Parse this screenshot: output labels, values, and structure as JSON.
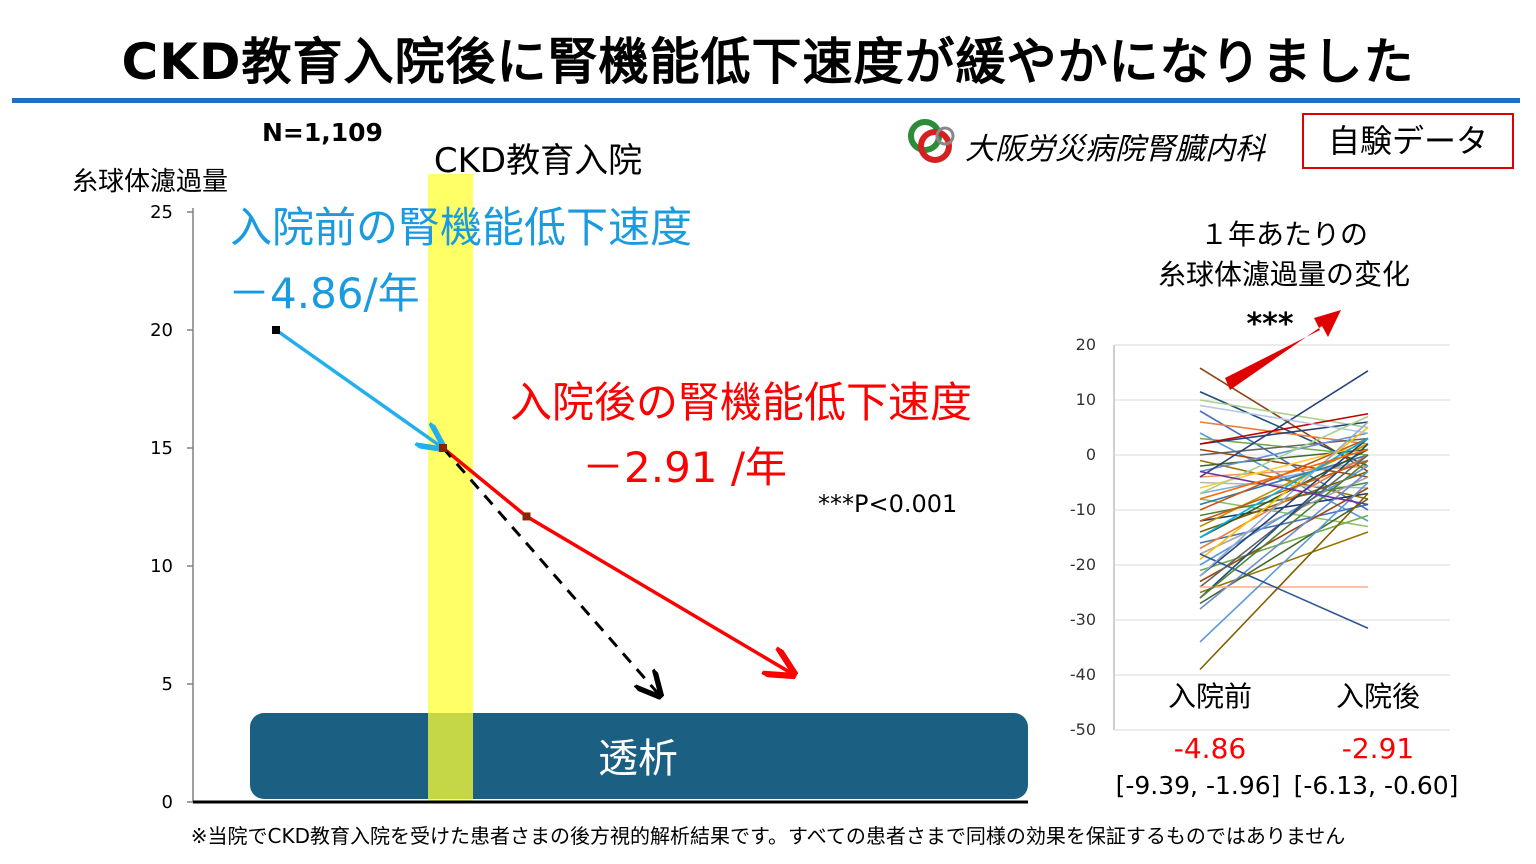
{
  "title": "CKD教育入院後に腎機能低下速度が緩やかになりました",
  "n_label": "N=1,109",
  "brand": "大阪労災病院腎臓内科",
  "badge": "自験データ",
  "footnote": "※当院でCKD教育入院を受けた患者さまの後方視的解析結果です。すべての患者さまで同様の効果を保証するものではありません",
  "colors": {
    "blue": "#1a9be0",
    "cyan_line": "#21b0ec",
    "red": "#ff0000",
    "highlight": "#ffff33",
    "dialysis": "#1b6082",
    "rule": "#1f6fc5",
    "arrow": "#e00000"
  },
  "chart_data": [
    {
      "type": "line",
      "ylabel": "糸球体濾過量",
      "ylim": [
        0,
        25
      ],
      "yticks": [
        "0",
        "5",
        "10",
        "15",
        "20",
        "25"
      ],
      "highlight_label": "CKD教育入院",
      "dialysis_label": "透析",
      "annotation_before_title": "入院前の腎機能低下速度",
      "annotation_before_value": "－4.86/年",
      "annotation_after_title": "入院後の腎機能低下速度",
      "annotation_after_value": "－2.91 /年",
      "significance": "***P<0.001",
      "series": [
        {
          "points": [
            [
              0,
              20
            ],
            [
              1,
              15
            ]
          ],
          "style": "solid",
          "color": "#21b0ec"
        },
        {
          "points": [
            [
              1,
              15
            ],
            [
              1.5,
              12.1
            ],
            [
              3.1,
              5.4
            ]
          ],
          "style": "solid",
          "color": "#ff0000"
        },
        {
          "points": [
            [
              1,
              15
            ],
            [
              2.3,
              4.5
            ]
          ],
          "style": "dashed",
          "color": "#000000"
        }
      ]
    },
    {
      "type": "line",
      "title_line1": "１年あたりの",
      "title_line2": "糸球体濾過量の変化",
      "categories": [
        "入院前",
        "入院後"
      ],
      "ylim": [
        -50,
        20
      ],
      "yticks": [
        "20",
        "10",
        "0",
        "-10",
        "-20",
        "-30",
        "-40",
        "-50"
      ],
      "significance": "***",
      "summary": [
        {
          "category": "入院前",
          "mean": "-4.86",
          "ci": "[-9.39, -1.96]"
        },
        {
          "category": "入院後",
          "mean": "-2.91",
          "ci": "[-6.13, -0.60]"
        }
      ],
      "series": [
        {
          "color": "#8B4513",
          "values": [
            15.8,
            -3
          ]
        },
        {
          "color": "#1f4e79",
          "values": [
            11.5,
            -2
          ]
        },
        {
          "color": "#a9d18e",
          "values": [
            10,
            5
          ]
        },
        {
          "color": "#4472c4",
          "values": [
            8,
            -10
          ]
        },
        {
          "color": "#ed7d31",
          "values": [
            6,
            2
          ]
        },
        {
          "color": "#5b9bd5",
          "values": [
            4,
            -12
          ]
        },
        {
          "color": "#70ad47",
          "values": [
            3,
            0
          ]
        },
        {
          "color": "#264478",
          "values": [
            2,
            6
          ]
        },
        {
          "color": "#9e480e",
          "values": [
            1,
            -4
          ]
        },
        {
          "color": "#636363",
          "values": [
            0,
            3
          ]
        },
        {
          "color": "#997300",
          "values": [
            -1,
            -8
          ]
        },
        {
          "color": "#43682b",
          "values": [
            -2,
            1
          ]
        },
        {
          "color": "#698ed0",
          "values": [
            -3,
            4
          ]
        },
        {
          "color": "#f1975a",
          "values": [
            -4,
            -2
          ]
        },
        {
          "color": "#b7b7b7",
          "values": [
            -5,
            -6
          ]
        },
        {
          "color": "#ffcd33",
          "values": [
            -6,
            2
          ]
        },
        {
          "color": "#7cafdd",
          "values": [
            -7,
            -1
          ]
        },
        {
          "color": "#8cc168",
          "values": [
            -8,
            -13
          ]
        },
        {
          "color": "#2e75b6",
          "values": [
            -9,
            0
          ]
        },
        {
          "color": "#c55a11",
          "values": [
            -10,
            3
          ]
        },
        {
          "color": "#548235",
          "values": [
            -11,
            -5
          ]
        },
        {
          "color": "#203864",
          "values": [
            -12,
            -7
          ]
        },
        {
          "color": "#bf9000",
          "values": [
            -13,
            2
          ]
        },
        {
          "color": "#7f6000",
          "values": [
            -14,
            -3
          ]
        },
        {
          "color": "#385723",
          "values": [
            -15,
            1
          ]
        },
        {
          "color": "#4472c4",
          "values": [
            -16,
            -9
          ]
        },
        {
          "color": "#ed7d31",
          "values": [
            -17,
            0
          ]
        },
        {
          "color": "#a5a5a5",
          "values": [
            -18,
            -4
          ]
        },
        {
          "color": "#ffc000",
          "values": [
            -19,
            5
          ]
        },
        {
          "color": "#5b9bd5",
          "values": [
            -20,
            -2
          ]
        },
        {
          "color": "#70ad47",
          "values": [
            -21,
            -11
          ]
        },
        {
          "color": "#264478",
          "values": [
            -22,
            3
          ]
        },
        {
          "color": "#9e480e",
          "values": [
            -23,
            -6
          ]
        },
        {
          "color": "#636363",
          "values": [
            -24,
            0
          ]
        },
        {
          "color": "#997300",
          "values": [
            -25,
            -14
          ]
        },
        {
          "color": "#1f4e79",
          "values": [
            -26,
            2
          ]
        },
        {
          "color": "#43682b",
          "values": [
            -27,
            -8
          ]
        },
        {
          "color": "#698ed0",
          "values": [
            -28,
            -3
          ]
        },
        {
          "color": "#f4b183",
          "values": [
            -24,
            -24
          ]
        },
        {
          "color": "#5b9bd5",
          "values": [
            -34,
            -5
          ]
        },
        {
          "color": "#7f6000",
          "values": [
            -39,
            -7
          ]
        },
        {
          "color": "#2f5597",
          "values": [
            -18,
            -31.5
          ]
        },
        {
          "color": "#264478",
          "values": [
            -4,
            15.3
          ]
        },
        {
          "color": "#c00000",
          "values": [
            2,
            7.5
          ]
        },
        {
          "color": "#b4c7e7",
          "values": [
            9,
            4
          ]
        },
        {
          "color": "#548235",
          "values": [
            -26,
            -1
          ]
        },
        {
          "color": "#8faadc",
          "values": [
            -22,
            6
          ]
        },
        {
          "color": "#c55a11",
          "values": [
            -12,
            -1
          ]
        },
        {
          "color": "#a9d18e",
          "values": [
            -7,
            7
          ]
        },
        {
          "color": "#7030a0",
          "values": [
            -3,
            -9
          ]
        },
        {
          "color": "#00b0f0",
          "values": [
            -15,
            3
          ]
        },
        {
          "color": "#ff6600",
          "values": [
            -8,
            1
          ]
        }
      ]
    }
  ]
}
